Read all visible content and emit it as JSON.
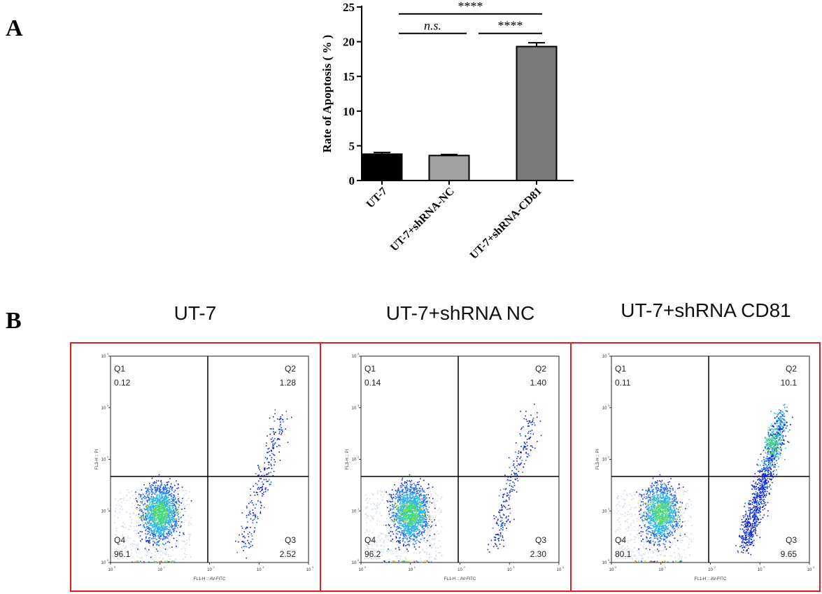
{
  "panel_labels": {
    "a": "A",
    "b": "B"
  },
  "chart_data": [
    {
      "type": "bar",
      "categories": [
        "UT-7",
        "UT-7+shRNA-NC",
        "UT-7+shRNA-CD81"
      ],
      "values": [
        3.8,
        3.6,
        19.3
      ],
      "errors": [
        0.25,
        0.15,
        0.55
      ],
      "colors": [
        "#000000",
        "#a0a0a0",
        "#7a7a7a"
      ],
      "ylabel": "Rate of Apoptosis ( % )",
      "ylim": [
        0,
        25
      ],
      "yticks": [
        "0",
        "5",
        "10",
        "15",
        "20",
        "25"
      ],
      "significance": [
        {
          "label": "****",
          "from": 0,
          "to": 2,
          "level": 24.0,
          "italic": false
        },
        {
          "label": "n.s.",
          "from": 0,
          "to": 1,
          "level": 21.2,
          "italic": true
        },
        {
          "label": "****",
          "from": 1,
          "to": 2,
          "level": 21.2,
          "italic": false
        }
      ]
    },
    {
      "type": "scatter",
      "panels": [
        {
          "title": "UT-7",
          "q1": "0.12",
          "q2": "1.28",
          "q3": "2.52",
          "q4": "96.1"
        },
        {
          "title": "UT-7+shRNA NC",
          "q1": "0.14",
          "q2": "1.40",
          "q3": "2.30",
          "q4": "96.2"
        },
        {
          "title": "UT-7+shRNA CD81",
          "q1": "0.11",
          "q2": "10.1",
          "q3": "9.65",
          "q4": "80.1"
        }
      ],
      "quadrant_names": [
        "Q1",
        "Q2",
        "Q3",
        "Q4"
      ],
      "xlabel": "FL1-H :: AV-FITC",
      "ylabel": "FL3-H :: PI",
      "x_scale": "log",
      "y_scale": "log",
      "ticks": [
        "10",
        "10",
        "10",
        "10",
        "10"
      ],
      "tick_exponents": [
        "0",
        "1",
        "2",
        "3",
        "4"
      ],
      "density_colors": [
        "#0a1fd6",
        "#1e6af0",
        "#2fb5e8",
        "#43d68a",
        "#9fdc2c",
        "#f2c21a",
        "#e8501a"
      ]
    }
  ]
}
